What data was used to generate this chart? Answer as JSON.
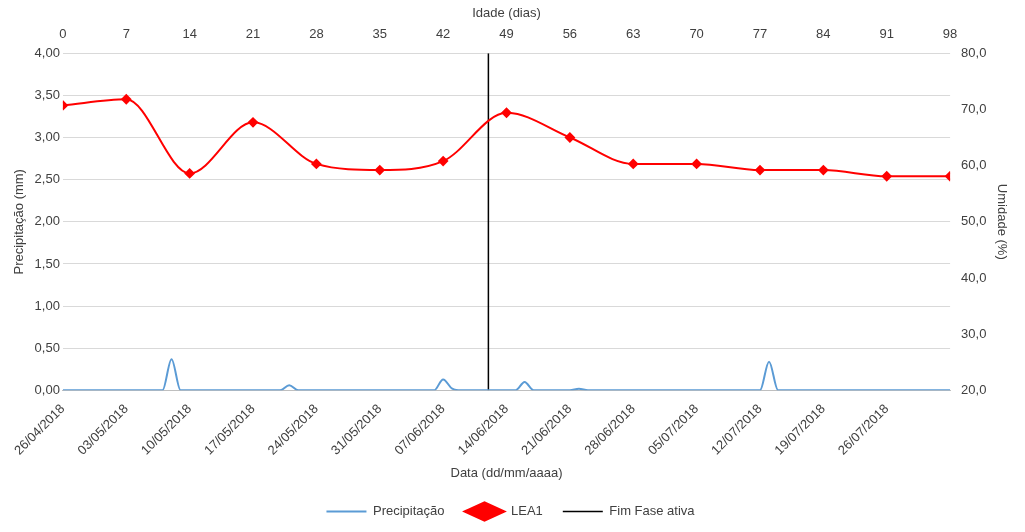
{
  "chart_data": {
    "type": "line",
    "xlabel": "Data (dd/mm/aaaa)",
    "x2label": "Idade (dias)",
    "ylabel": "Precipitação (mm)",
    "y2label": "Umidade (%)",
    "xlim": [
      "2018-04-26",
      "2018-08-02"
    ],
    "xticks": [
      {
        "value": "2018-04-26",
        "label": "26/04/2018"
      },
      {
        "value": "2018-05-03",
        "label": "03/05/2018"
      },
      {
        "value": "2018-05-10",
        "label": "10/05/2018"
      },
      {
        "value": "2018-05-17",
        "label": "17/05/2018"
      },
      {
        "value": "2018-05-24",
        "label": "24/05/2018"
      },
      {
        "value": "2018-05-31",
        "label": "31/05/2018"
      },
      {
        "value": "2018-06-07",
        "label": "07/06/2018"
      },
      {
        "value": "2018-06-14",
        "label": "14/06/2018"
      },
      {
        "value": "2018-06-21",
        "label": "21/06/2018"
      },
      {
        "value": "2018-06-28",
        "label": "28/06/2018"
      },
      {
        "value": "2018-07-05",
        "label": "05/07/2018"
      },
      {
        "value": "2018-07-12",
        "label": "12/07/2018"
      },
      {
        "value": "2018-07-19",
        "label": "19/07/2018"
      },
      {
        "value": "2018-07-26",
        "label": "26/07/2018"
      }
    ],
    "x2lim": [
      0,
      98
    ],
    "x2ticks": [
      0,
      7,
      14,
      21,
      28,
      35,
      42,
      49,
      56,
      63,
      70,
      77,
      84,
      91,
      98
    ],
    "ylim": [
      0,
      4
    ],
    "yticks": [
      {
        "value": 0,
        "label": "0,00"
      },
      {
        "value": 0.5,
        "label": "0,50"
      },
      {
        "value": 1,
        "label": "1,00"
      },
      {
        "value": 1.5,
        "label": "1,50"
      },
      {
        "value": 2,
        "label": "2,00"
      },
      {
        "value": 2.5,
        "label": "2,50"
      },
      {
        "value": 3,
        "label": "3,00"
      },
      {
        "value": 3.5,
        "label": "3,50"
      },
      {
        "value": 4,
        "label": "4,00"
      }
    ],
    "y2lim": [
      20,
      80
    ],
    "y2ticks": [
      {
        "value": 20,
        "label": "20,0"
      },
      {
        "value": 30,
        "label": "30,0"
      },
      {
        "value": 40,
        "label": "40,0"
      },
      {
        "value": 50,
        "label": "50,0"
      },
      {
        "value": 60,
        "label": "60,0"
      },
      {
        "value": 70,
        "label": "70,0"
      },
      {
        "value": 80,
        "label": "80,0"
      }
    ],
    "grid": "y",
    "legend": "bottom",
    "series": [
      {
        "name": "Precipitação",
        "color": "#5b9bd5",
        "marker": "none",
        "x": [
          "2018-04-26",
          "2018-05-07",
          "2018-05-08",
          "2018-05-09",
          "2018-05-20",
          "2018-05-21",
          "2018-05-22",
          "2018-06-06",
          "2018-06-07",
          "2018-06-08",
          "2018-06-09",
          "2018-06-15",
          "2018-06-16",
          "2018-06-17",
          "2018-06-21",
          "2018-06-22",
          "2018-06-23",
          "2018-07-12",
          "2018-07-13",
          "2018-07-14",
          "2018-08-02"
        ],
        "values": [
          0,
          0,
          0.37,
          0,
          0,
          0.06,
          0,
          0,
          0.13,
          0.02,
          0,
          0,
          0.1,
          0,
          0,
          0.02,
          0,
          0,
          0.34,
          0,
          0
        ]
      },
      {
        "name": "LEA1",
        "color": "#ff0000",
        "marker": "diamond",
        "axis": "y2",
        "x": [
          "2018-04-26",
          "2018-05-03",
          "2018-05-10",
          "2018-05-17",
          "2018-05-24",
          "2018-05-31",
          "2018-06-07",
          "2018-06-14",
          "2018-06-21",
          "2018-06-28",
          "2018-07-05",
          "2018-07-12",
          "2018-07-19",
          "2018-07-26",
          "2018-08-02"
        ],
        "values": [
          70.7,
          71.8,
          58.6,
          67.7,
          60.3,
          59.2,
          60.8,
          69.4,
          65.0,
          60.3,
          60.3,
          59.2,
          59.2,
          58.1,
          58.1
        ]
      }
    ],
    "ref_lines": [
      {
        "axis": "x",
        "value": "2018-06-12",
        "label": "Fim Fase ativa",
        "color": "#000000",
        "line_style": "solid"
      }
    ]
  }
}
